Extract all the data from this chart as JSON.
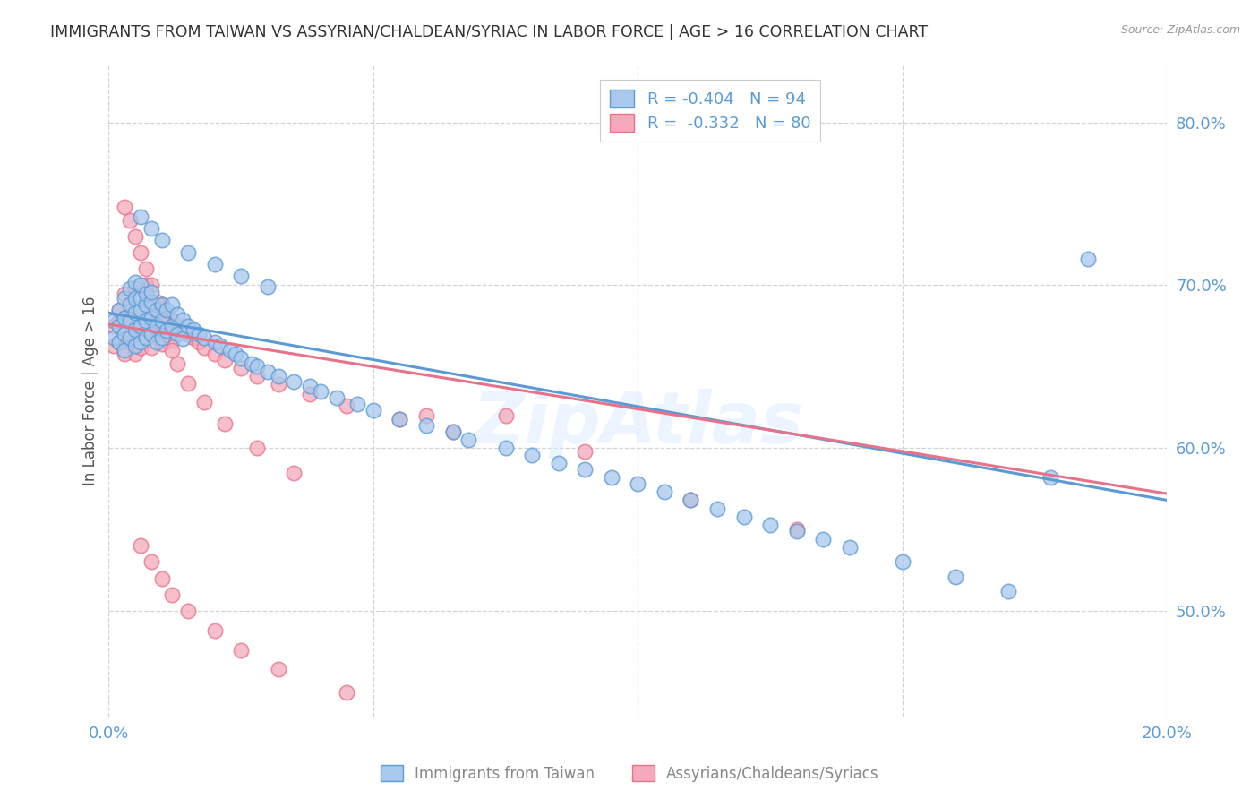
{
  "title": "IMMIGRANTS FROM TAIWAN VS ASSYRIAN/CHALDEAN/SYRIAC IN LABOR FORCE | AGE > 16 CORRELATION CHART",
  "source": "Source: ZipAtlas.com",
  "ylabel": "In Labor Force | Age > 16",
  "xlim": [
    0.0,
    0.2
  ],
  "ylim": [
    0.435,
    0.835
  ],
  "yticks": [
    0.5,
    0.6,
    0.7,
    0.8
  ],
  "ytick_labels": [
    "50.0%",
    "60.0%",
    "70.0%",
    "80.0%"
  ],
  "xticks": [
    0.0,
    0.05,
    0.1,
    0.15,
    0.2
  ],
  "xtick_labels": [
    "0.0%",
    "",
    "",
    "",
    "20.0%"
  ],
  "legend_blue_r": "R = -0.404",
  "legend_blue_n": "N = 94",
  "legend_pink_r": "R =  -0.332",
  "legend_pink_n": "N = 80",
  "blue_color": "#A8C8ED",
  "pink_color": "#F4AABB",
  "blue_line_color": "#5B9BD5",
  "pink_line_color": "#E8728A",
  "watermark": "ZipAtlas",
  "axis_label_color": "#5B9BD5",
  "blue_scatter_x": [
    0.001,
    0.001,
    0.002,
    0.002,
    0.002,
    0.003,
    0.003,
    0.003,
    0.003,
    0.004,
    0.004,
    0.004,
    0.004,
    0.005,
    0.005,
    0.005,
    0.005,
    0.005,
    0.006,
    0.006,
    0.006,
    0.006,
    0.006,
    0.007,
    0.007,
    0.007,
    0.007,
    0.008,
    0.008,
    0.008,
    0.008,
    0.009,
    0.009,
    0.009,
    0.01,
    0.01,
    0.01,
    0.011,
    0.011,
    0.012,
    0.012,
    0.013,
    0.013,
    0.014,
    0.014,
    0.015,
    0.016,
    0.017,
    0.018,
    0.02,
    0.021,
    0.023,
    0.024,
    0.025,
    0.027,
    0.028,
    0.03,
    0.032,
    0.035,
    0.038,
    0.04,
    0.043,
    0.047,
    0.05,
    0.055,
    0.06,
    0.065,
    0.068,
    0.075,
    0.08,
    0.085,
    0.09,
    0.095,
    0.1,
    0.105,
    0.11,
    0.115,
    0.12,
    0.125,
    0.13,
    0.135,
    0.14,
    0.15,
    0.16,
    0.17,
    0.178,
    0.185,
    0.006,
    0.008,
    0.01,
    0.015,
    0.02,
    0.025,
    0.03
  ],
  "blue_scatter_y": [
    0.678,
    0.668,
    0.675,
    0.665,
    0.685,
    0.68,
    0.67,
    0.66,
    0.692,
    0.678,
    0.688,
    0.668,
    0.698,
    0.683,
    0.673,
    0.663,
    0.692,
    0.702,
    0.685,
    0.675,
    0.665,
    0.692,
    0.7,
    0.688,
    0.678,
    0.668,
    0.695,
    0.69,
    0.68,
    0.67,
    0.696,
    0.685,
    0.675,
    0.665,
    0.688,
    0.678,
    0.668,
    0.685,
    0.672,
    0.688,
    0.675,
    0.682,
    0.67,
    0.679,
    0.667,
    0.675,
    0.673,
    0.67,
    0.668,
    0.665,
    0.663,
    0.66,
    0.658,
    0.655,
    0.652,
    0.65,
    0.647,
    0.644,
    0.641,
    0.638,
    0.635,
    0.631,
    0.627,
    0.623,
    0.618,
    0.614,
    0.61,
    0.605,
    0.6,
    0.596,
    0.591,
    0.587,
    0.582,
    0.578,
    0.573,
    0.568,
    0.563,
    0.558,
    0.553,
    0.549,
    0.544,
    0.539,
    0.53,
    0.521,
    0.512,
    0.582,
    0.716,
    0.742,
    0.735,
    0.728,
    0.72,
    0.713,
    0.706,
    0.699
  ],
  "pink_scatter_x": [
    0.001,
    0.001,
    0.002,
    0.002,
    0.002,
    0.003,
    0.003,
    0.003,
    0.003,
    0.004,
    0.004,
    0.004,
    0.005,
    0.005,
    0.005,
    0.005,
    0.006,
    0.006,
    0.006,
    0.007,
    0.007,
    0.007,
    0.007,
    0.008,
    0.008,
    0.008,
    0.009,
    0.009,
    0.01,
    0.01,
    0.01,
    0.011,
    0.011,
    0.012,
    0.012,
    0.013,
    0.014,
    0.015,
    0.016,
    0.017,
    0.018,
    0.02,
    0.022,
    0.025,
    0.028,
    0.032,
    0.038,
    0.045,
    0.055,
    0.065,
    0.075,
    0.09,
    0.11,
    0.13,
    0.003,
    0.004,
    0.005,
    0.006,
    0.007,
    0.008,
    0.009,
    0.01,
    0.011,
    0.012,
    0.013,
    0.015,
    0.018,
    0.022,
    0.028,
    0.035,
    0.006,
    0.008,
    0.01,
    0.012,
    0.015,
    0.02,
    0.025,
    0.032,
    0.045,
    0.06
  ],
  "pink_scatter_y": [
    0.675,
    0.663,
    0.678,
    0.665,
    0.685,
    0.68,
    0.668,
    0.658,
    0.695,
    0.678,
    0.688,
    0.665,
    0.683,
    0.67,
    0.658,
    0.698,
    0.685,
    0.673,
    0.662,
    0.69,
    0.678,
    0.668,
    0.7,
    0.686,
    0.674,
    0.662,
    0.683,
    0.671,
    0.688,
    0.676,
    0.664,
    0.682,
    0.67,
    0.678,
    0.666,
    0.675,
    0.672,
    0.67,
    0.668,
    0.665,
    0.662,
    0.658,
    0.654,
    0.649,
    0.644,
    0.639,
    0.633,
    0.626,
    0.618,
    0.61,
    0.62,
    0.598,
    0.568,
    0.55,
    0.748,
    0.74,
    0.73,
    0.72,
    0.71,
    0.7,
    0.69,
    0.68,
    0.67,
    0.66,
    0.652,
    0.64,
    0.628,
    0.615,
    0.6,
    0.585,
    0.54,
    0.53,
    0.52,
    0.51,
    0.5,
    0.488,
    0.476,
    0.464,
    0.45,
    0.62
  ],
  "blue_line_x": [
    0.0,
    0.2
  ],
  "blue_line_y": [
    0.683,
    0.568
  ],
  "pink_line_x": [
    0.0,
    0.2
  ],
  "pink_line_y": [
    0.676,
    0.572
  ]
}
